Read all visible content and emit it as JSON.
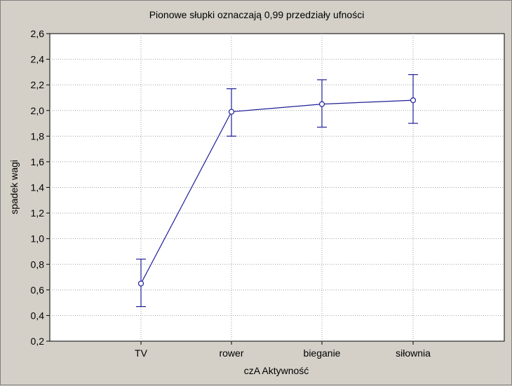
{
  "chart_data": {
    "type": "line",
    "title": "Pionowe słupki oznaczają 0,99 przedziały ufności",
    "xlabel": "czA Aktywność",
    "ylabel": "spadek wagi",
    "categories": [
      "TV",
      "rower",
      "bieganie",
      "siłownia"
    ],
    "values": [
      0.65,
      1.99,
      2.05,
      2.08
    ],
    "ci_lower": [
      0.47,
      1.8,
      1.87,
      1.9
    ],
    "ci_upper": [
      0.84,
      2.17,
      2.24,
      2.28
    ],
    "ylim": [
      0.2,
      2.6
    ],
    "yticks": [
      "0,2",
      "0,4",
      "0,6",
      "0,8",
      "1,0",
      "1,2",
      "1,4",
      "1,6",
      "1,8",
      "2,0",
      "2,2",
      "2,4",
      "2,6"
    ],
    "grid": true,
    "colors": {
      "line": "#1f1f99",
      "marker_fill": "#ffffff",
      "plot_bg": "#ffffff",
      "figure_bg": "#d4d0c8",
      "grid": "#a0a0a0"
    }
  }
}
